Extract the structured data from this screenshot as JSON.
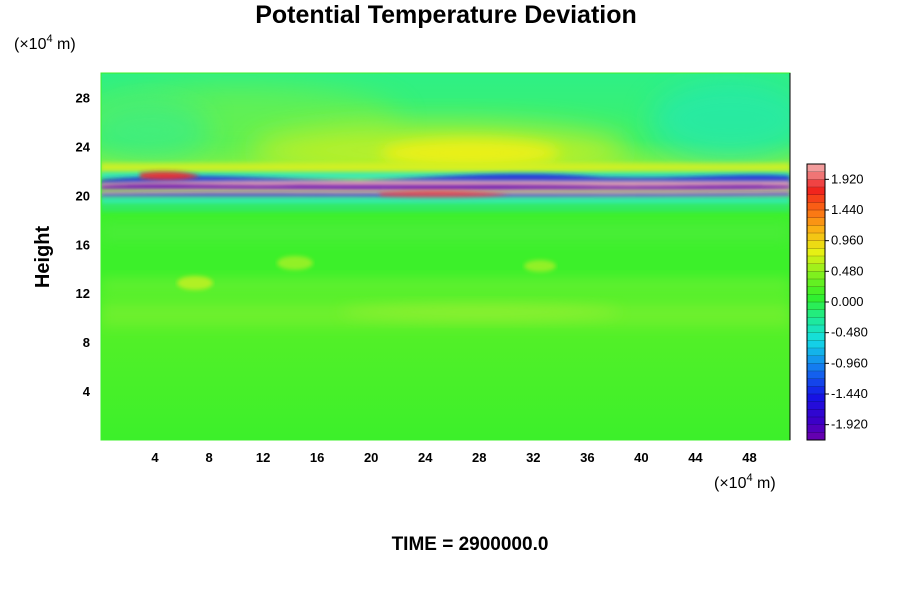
{
  "chart_data": {
    "type": "heatmap",
    "title": "Potential Temperature Deviation",
    "ylabel": "Height",
    "xlabel": "",
    "y_unit_prefix": "(×10",
    "y_unit_exp": "4",
    "y_unit_suffix": " m)",
    "x_unit_prefix": "(×10",
    "x_unit_exp": "4",
    "x_unit_suffix": " m)",
    "xlim": [
      0,
      51
    ],
    "ylim": [
      0,
      30
    ],
    "x_ticks": [
      4,
      8,
      12,
      16,
      20,
      24,
      28,
      32,
      36,
      40,
      44,
      48
    ],
    "y_ticks": [
      4,
      8,
      12,
      16,
      20,
      24,
      28
    ],
    "colorbar": {
      "range": [
        -2.16,
        2.16
      ],
      "ticks": [
        "1.920",
        "1.440",
        "0.960",
        "0.480",
        "0.000",
        "-0.480",
        "-0.960",
        "-1.440",
        "-1.920"
      ],
      "tick_values": [
        1.92,
        1.44,
        0.96,
        0.48,
        0.0,
        -0.48,
        -0.96,
        -1.44,
        -1.92
      ],
      "levels": 36
    },
    "annotation": "TIME = 2900000.0"
  },
  "colors": {
    "background_field": "#3cf02a",
    "upper_field": "#30f068",
    "warm_band": "#f4b4b4",
    "cold_band": "#6a00c8"
  }
}
